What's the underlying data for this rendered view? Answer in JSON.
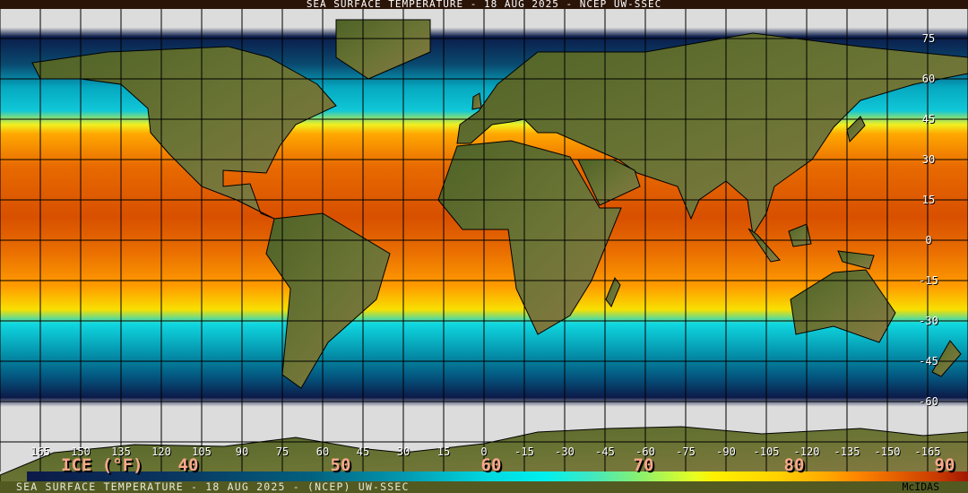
{
  "title": "SEA SURFACE TEMPERATURE - 18 AUG 2025 - NCEP UW-SSEC",
  "footer": {
    "text": "SEA SURFACE TEMPERATURE - 18 AUG 2025 - (NCEP)    UW-SSEC",
    "credit": "McIDAS"
  },
  "longitude_labels": [
    "165",
    "150",
    "135",
    "120",
    "105",
    "90",
    "75",
    "60",
    "45",
    "30",
    "15",
    "0",
    "-15",
    "-30",
    "-45",
    "-60",
    "-75",
    "-90",
    "-105",
    "-120",
    "-135",
    "-150",
    "-165"
  ],
  "latitude_labels": [
    "75",
    "60",
    "45",
    "30",
    "15",
    "0",
    "-15",
    "-30",
    "-45",
    "-60"
  ],
  "legend": {
    "ice_label": "ICE (°F)",
    "labels": [
      "40",
      "50",
      "60",
      "70",
      "80",
      "90"
    ]
  },
  "colors": {
    "ice": "#dcdcdc",
    "cold": "#0c1a48",
    "cool": "#00e0e8",
    "mild": "#fff000",
    "warm": "#ff8800",
    "hot": "#c83800",
    "land": "#5a6a2a",
    "grid": "#000000"
  }
}
